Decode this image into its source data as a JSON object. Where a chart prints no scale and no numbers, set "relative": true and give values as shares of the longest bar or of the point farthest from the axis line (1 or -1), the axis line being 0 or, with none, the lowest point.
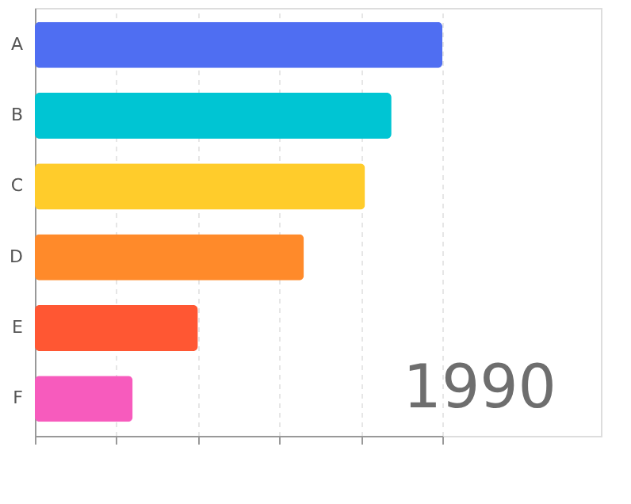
{
  "chart_data": {
    "type": "bar",
    "orientation": "horizontal",
    "relative": true,
    "categories": [
      "A",
      "B",
      "C",
      "D",
      "E",
      "F"
    ],
    "values": [
      1,
      0.875,
      0.81,
      0.66,
      0.4,
      0.24
    ],
    "colors": [
      "#4f6ef2",
      "#00c5d3",
      "#ffcc2b",
      "#ff8a2a",
      "#ff5733",
      "#f75bbd"
    ],
    "grid": "x",
    "annotations": [
      "1990"
    ]
  }
}
